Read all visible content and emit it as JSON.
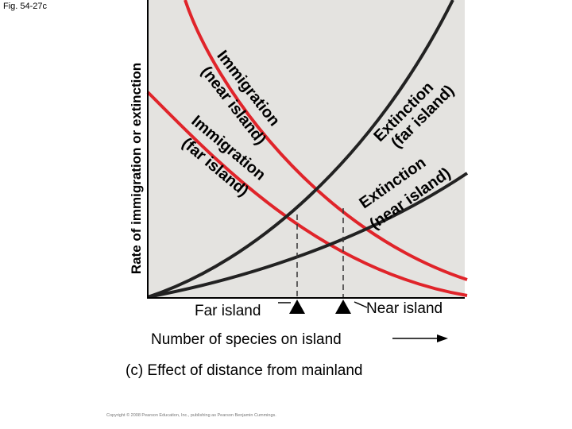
{
  "figure": {
    "label": "Fig. 54-27c",
    "y_axis_label": "Rate of immigration or extinction",
    "x_axis_label": "Number of species on island",
    "caption": "(c) Effect of distance from mainland",
    "copyright": "Copyright © 2008 Pearson Education, Inc., publishing as Pearson Benjamin Cummings."
  },
  "curves": {
    "immigration_near": {
      "line1": "Immigration",
      "line2": "(near island)",
      "color": "#e0242a"
    },
    "immigration_far": {
      "line1": "Immigration",
      "line2": "(far island)",
      "color": "#e0242a"
    },
    "extinction_far": {
      "line1": "Extinction",
      "line2": "(far island)",
      "color": "#222222"
    },
    "extinction_near": {
      "line1": "Extinction",
      "line2": "(near island)",
      "color": "#222222"
    }
  },
  "equilibrium_points": {
    "far": {
      "label": "Far island"
    },
    "near": {
      "label": "Near island"
    }
  },
  "colors": {
    "background": "#e4e3e0",
    "immigration": "#e0242a",
    "extinction": "#222222"
  }
}
